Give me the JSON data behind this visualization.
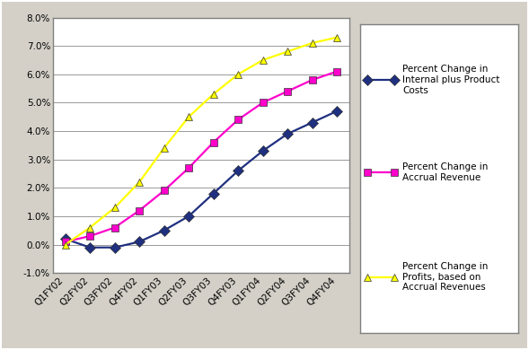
{
  "categories": [
    "Q1FY02",
    "Q2FY02",
    "Q3FY02",
    "Q4FY02",
    "Q1FY03",
    "Q2FY03",
    "Q3FY03",
    "Q4FY03",
    "Q1FY04",
    "Q2FY04",
    "Q3FY04",
    "Q4FY04"
  ],
  "series": [
    {
      "name": "Percent Change in\nInternal plus Product\nCosts",
      "color": "#1f3080",
      "marker": "D",
      "values": [
        0.002,
        -0.001,
        -0.001,
        0.001,
        0.005,
        0.01,
        0.018,
        0.026,
        0.033,
        0.039,
        0.043,
        0.047
      ]
    },
    {
      "name": "Percent Change in\nAccrual Revenue",
      "color": "#ff00cc",
      "marker": "s",
      "values": [
        0.001,
        0.003,
        0.006,
        0.012,
        0.019,
        0.027,
        0.036,
        0.044,
        0.05,
        0.054,
        0.058,
        0.061
      ]
    },
    {
      "name": "Percent Change in\nProfits, based on\nAccrual Revenues",
      "color": "#ffff00",
      "marker": "^",
      "values": [
        0.0,
        0.006,
        0.013,
        0.022,
        0.034,
        0.045,
        0.053,
        0.06,
        0.065,
        0.068,
        0.071,
        0.073
      ]
    }
  ],
  "ylim": [
    -0.01,
    0.08
  ],
  "yticks": [
    -0.01,
    0.0,
    0.01,
    0.02,
    0.03,
    0.04,
    0.05,
    0.06,
    0.07,
    0.08
  ],
  "ytick_labels": [
    "-1.0%",
    "0.0%",
    "1.0%",
    "2.0%",
    "3.0%",
    "4.0%",
    "5.0%",
    "6.0%",
    "7.0%",
    "8.0%"
  ],
  "fig_bg_color": "#d4d0c8",
  "plot_area_color": "#ffffff",
  "grid_color": "#999999",
  "border_color": "#808080",
  "outer_border_color": "#404040",
  "legend_fontsize": 7.5,
  "tick_fontsize": 7.5,
  "marker_size": 6,
  "line_width": 1.6,
  "legend_label_1": "Percent Change in\nInternal plus Product\nCosts",
  "legend_label_2": "Percent Change in\nAccrual Revenue",
  "legend_label_3": "Percent Change in\nProfits, based on\nAccrual Revenues"
}
